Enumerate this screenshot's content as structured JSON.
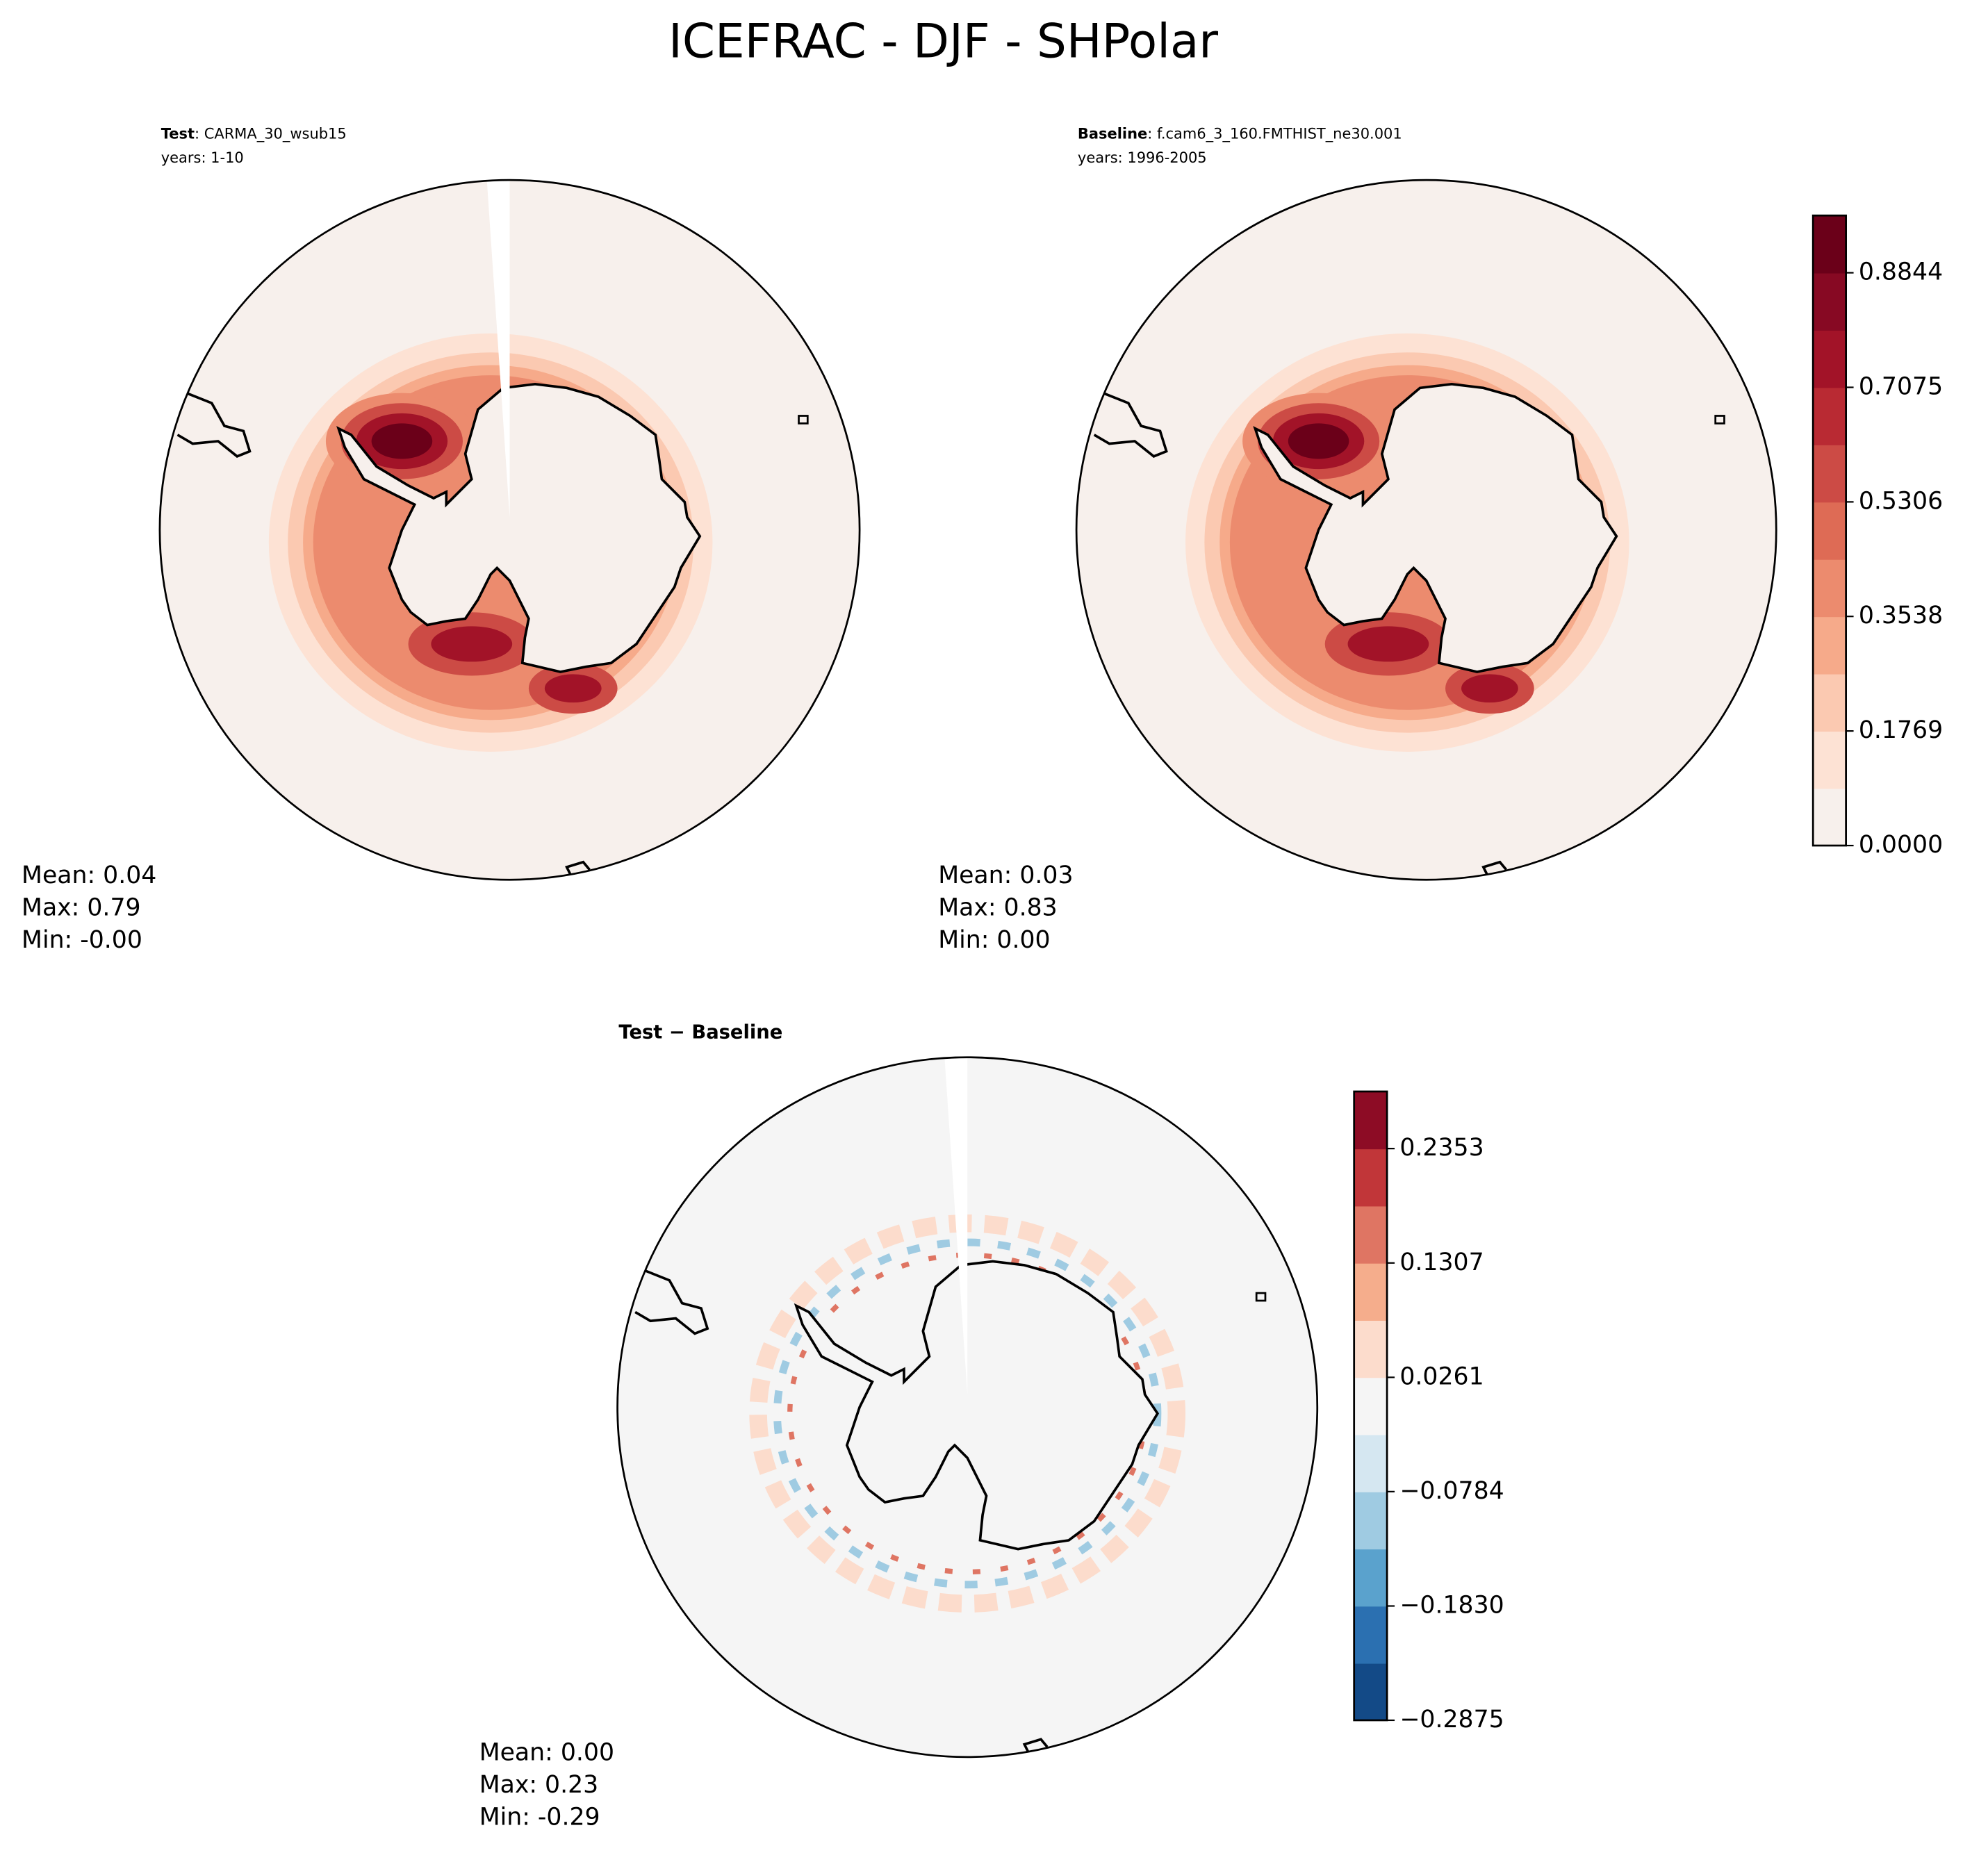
{
  "figure": {
    "title": "ICEFRAC - DJF - SHPolar",
    "panels": [
      {
        "heading": "Test",
        "case": ": CARMA_30_wsub15",
        "years": "years: 1-10",
        "stats": [
          "Mean:  0.04",
          "Max:  0.79",
          "Min: -0.00"
        ]
      },
      {
        "heading": "Baseline",
        "case": ": f.cam6_3_160.FMTHIST_ne30.001",
        "years": "years: 1996-2005",
        "stats": [
          "Mean:  0.03",
          "Max:  0.83",
          "Min:  0.00"
        ]
      },
      {
        "heading": "Test − Baseline",
        "stats": [
          "Mean:  0.00",
          "Max:  0.23",
          "Min: -0.29"
        ]
      }
    ],
    "colorbars": [
      {
        "lim": [
          0,
          0.9728
        ],
        "ticks": [
          {
            "value": 0,
            "label": "0.0000"
          },
          0.1769,
          0.3538,
          0.5306,
          0.7075,
          0.8844
        ],
        "colors": [
          "#f7f0ec",
          "#fde2d4",
          "#fbc9b1",
          "#f6aa8a",
          "#ec8b6e",
          "#de6b55",
          "#cc4b45",
          "#b92a33",
          "#a21328",
          "#870923",
          "#6b0019"
        ]
      },
      {
        "lim": [
          -0.2875,
          0.2875
        ],
        "ticks": [
          {
            "value": -0.2875,
            "label": "−0.2875"
          },
          {
            "value": -0.183,
            "label": "−0.1830"
          },
          {
            "value": -0.0784,
            "label": "−0.0784"
          },
          0.0261,
          0.1307,
          0.2353
        ],
        "colors": [
          "#134a87",
          "#2b70b1",
          "#5aa2cd",
          "#9fcbe2",
          "#d5e7f1",
          "#f5f5f5",
          "#fcdccc",
          "#f5ad8c",
          "#df7563",
          "#c13639",
          "#8d0c25"
        ]
      }
    ]
  }
}
